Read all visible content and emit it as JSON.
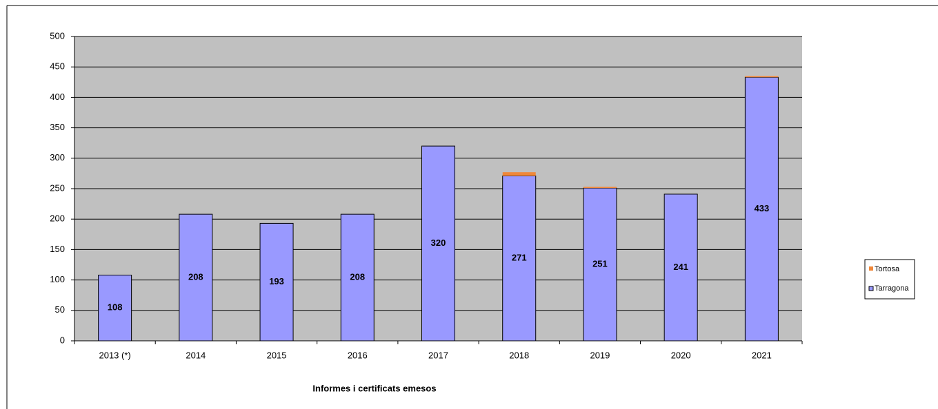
{
  "chart_data": {
    "type": "stacked-bar",
    "x_label": "Informes i certificats  emesos",
    "categories": [
      "2013  (*)",
      "2014",
      "2015",
      "2016",
      "2017",
      "2018",
      "2019",
      "2020",
      "2021"
    ],
    "series": [
      {
        "name": "Tarragona",
        "color": "#9999ff",
        "values": [
          108,
          208,
          193,
          208,
          320,
          271,
          251,
          241,
          433
        ],
        "show_labels": true
      },
      {
        "name": "Tortosa",
        "color": "#f0883a",
        "values": [
          0,
          0,
          0,
          0,
          0,
          6,
          2,
          0,
          2
        ],
        "show_labels": false
      }
    ],
    "ylim": [
      0,
      500
    ],
    "yticks": [
      0,
      50,
      100,
      150,
      200,
      250,
      300,
      350,
      400,
      450,
      500
    ],
    "grid": true,
    "legend": "right"
  }
}
